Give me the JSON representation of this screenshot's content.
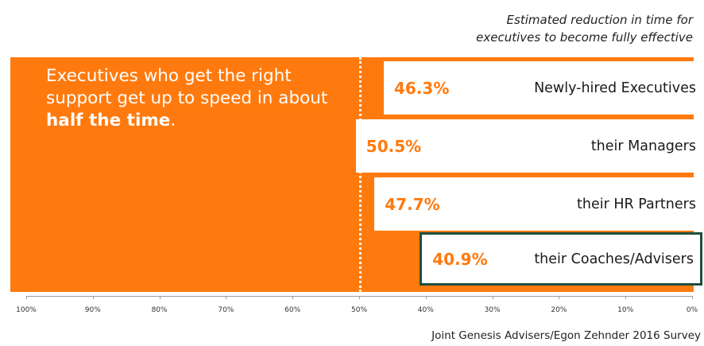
{
  "subtitle_lines": [
    "Estimated reduction in time for",
    "executives to become fully effective"
  ],
  "headline": {
    "text_before": "Executives who get the right support get up to speed in about ",
    "bold": "half the time",
    "text_after": "."
  },
  "chart_data": {
    "type": "bar",
    "orientation": "horizontal",
    "x_reversed": true,
    "categories": [
      "Newly-hired Executives",
      "their Managers",
      "their HR Partners",
      "their Coaches/Advisers"
    ],
    "values": [
      46.3,
      50.5,
      47.7,
      40.9
    ],
    "value_labels": [
      "46.3%",
      "50.5%",
      "47.7%",
      "40.9%"
    ],
    "xlim": [
      0,
      100
    ],
    "x_ticks": [
      "100%",
      "90%",
      "80%",
      "70%",
      "60%",
      "50%",
      "40%",
      "30%",
      "20%",
      "10%",
      "0%"
    ],
    "reference_line": 50,
    "highlighted_category": "their Coaches/Advisers",
    "grid": false
  },
  "source": "Joint Genesis Advisers/Egon Zehnder 2016 Survey",
  "colors": {
    "accent": "#ff7a0e",
    "bar_fill": "#ffffff",
    "highlight_border": "#1f4e3d"
  }
}
